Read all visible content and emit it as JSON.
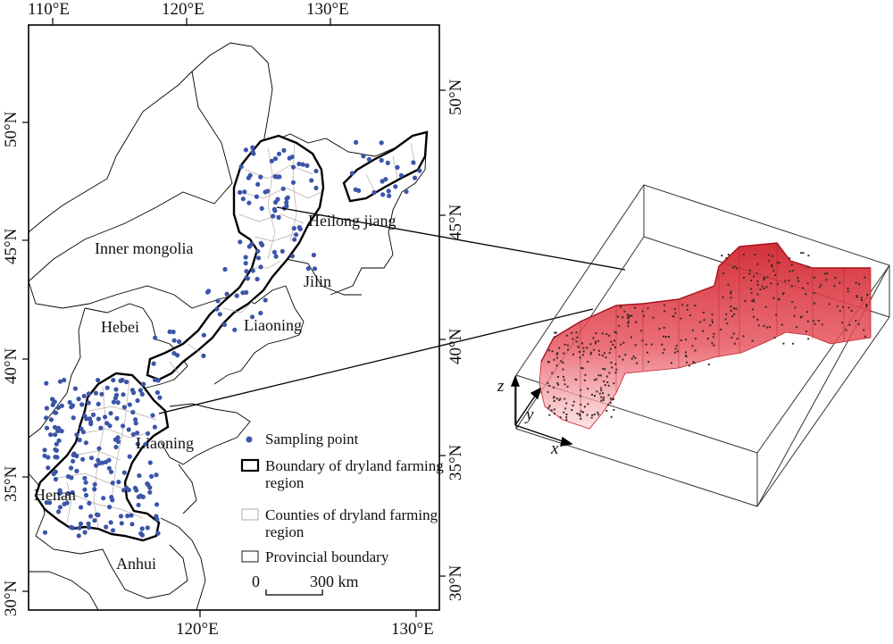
{
  "map": {
    "lon_ticks_top": [
      "110°E",
      "120°E",
      "130°E"
    ],
    "lon_ticks_bottom": [
      "120°E",
      "130°E"
    ],
    "lat_ticks_left": [
      "50°N",
      "45°N",
      "40°N",
      "35°N",
      "30°N"
    ],
    "lat_ticks_right": [
      "50°N",
      "45°N",
      "40°N",
      "35°N",
      "30°N"
    ],
    "place_labels": {
      "heilongjiang": "Heilong jiang",
      "inner_mongolia": "Inner mongolia",
      "jilin": "Jilin",
      "liaoning_north": "Liaoning",
      "hebei": "Hebei",
      "liaoning_south": "Liaoning",
      "henan": "Henan",
      "anhui": "Anhui"
    },
    "scale_bar": {
      "start": "0",
      "end": "300 km"
    }
  },
  "legend": {
    "sampling_point": "Sampling point",
    "boundary_dryland": "Boundary of dryland farming region",
    "counties_dryland": "Counties of dryland farming region",
    "provincial_boundary": "Provincial boundary"
  },
  "block3d": {
    "axis_z": "z",
    "axis_y": "y",
    "axis_x": "x"
  },
  "colors": {
    "sampling_point": "#3b55a8",
    "dryland_fill": "#ffffff",
    "county_line": "#b7a9a3",
    "boundary": "#000000",
    "extrusion_top": "#d62a35",
    "extrusion_bottom": "#f7c9cc"
  }
}
